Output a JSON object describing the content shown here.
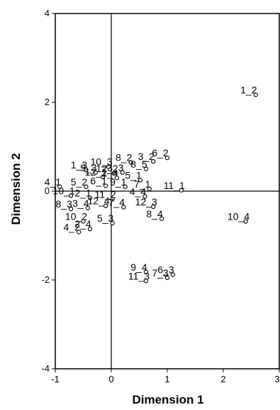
{
  "chart_data": {
    "type": "scatter",
    "title": "",
    "xlabel": "Dimension 1",
    "ylabel": "Dimension 2",
    "xlim": [
      -1,
      3
    ],
    "ylim": [
      -4,
      4
    ],
    "x_ticks": [
      "-1",
      "0",
      "1",
      "2",
      "3"
    ],
    "y_ticks": [
      "-4",
      "-2",
      "0",
      "2",
      "4"
    ],
    "reference_lines": {
      "x": 0,
      "y": 0
    },
    "grid": false,
    "legend": "none",
    "marker": "open-circle",
    "points": [
      {
        "label": "1_2",
        "x": 2.58,
        "y": 2.17
      },
      {
        "label": "10_3",
        "x": -0.05,
        "y": 0.55
      },
      {
        "label": "8_2",
        "x": 0.35,
        "y": 0.65
      },
      {
        "label": "3_2",
        "x": 0.75,
        "y": 0.67
      },
      {
        "label": "6_2",
        "x": 1.0,
        "y": 0.75
      },
      {
        "label": "1_3",
        "x": -0.45,
        "y": 0.48
      },
      {
        "label": "9_3",
        "x": -0.28,
        "y": 0.42
      },
      {
        "label": "12_2",
        "x": 0.05,
        "y": 0.4
      },
      {
        "label": "3_3",
        "x": 0.2,
        "y": 0.42
      },
      {
        "label": "8_5",
        "x": 0.62,
        "y": 0.5
      },
      {
        "label": "12_1",
        "x": -0.15,
        "y": 0.32
      },
      {
        "label": "2_4",
        "x": 0.1,
        "y": 0.3
      },
      {
        "label": "5_1",
        "x": 0.52,
        "y": 0.25
      },
      {
        "label": "4_1",
        "x": -0.92,
        "y": 0.1
      },
      {
        "label": "5_2",
        "x": -0.45,
        "y": 0.1
      },
      {
        "label": "6_1",
        "x": -0.1,
        "y": 0.12
      },
      {
        "label": "9_1",
        "x": 0.25,
        "y": 0.1
      },
      {
        "label": "7_1",
        "x": 0.68,
        "y": 0.05
      },
      {
        "label": "11_1",
        "x": 1.25,
        "y": 0.02
      },
      {
        "label": "10_1",
        "x": -0.72,
        "y": -0.1
      },
      {
        "label": "2_1",
        "x": -0.38,
        "y": -0.15
      },
      {
        "label": "11_2",
        "x": 0.02,
        "y": -0.18
      },
      {
        "label": "4_4",
        "x": 0.6,
        "y": -0.12
      },
      {
        "label": "8_3",
        "x": -0.72,
        "y": -0.4
      },
      {
        "label": "3_4",
        "x": -0.42,
        "y": -0.38
      },
      {
        "label": "12_4",
        "x": -0.1,
        "y": -0.33
      },
      {
        "label": "7_4",
        "x": 0.22,
        "y": -0.36
      },
      {
        "label": "12_3",
        "x": 0.75,
        "y": -0.35
      },
      {
        "label": "10_2",
        "x": -0.5,
        "y": -0.68
      },
      {
        "label": "5_3",
        "x": 0.02,
        "y": -0.72
      },
      {
        "label": "8_4",
        "x": 0.9,
        "y": -0.62
      },
      {
        "label": "10_4",
        "x": 2.4,
        "y": -0.68
      },
      {
        "label": "4_2",
        "x": -0.58,
        "y": -0.92
      },
      {
        "label": "2_4",
        "x": -0.38,
        "y": -0.85
      },
      {
        "label": "9_4",
        "x": 0.62,
        "y": -1.82
      },
      {
        "label": "6_3",
        "x": 1.1,
        "y": -1.88
      },
      {
        "label": "11_3",
        "x": 0.62,
        "y": -2.02
      },
      {
        "label": "7_3",
        "x": 1.0,
        "y": -1.95
      }
    ]
  }
}
